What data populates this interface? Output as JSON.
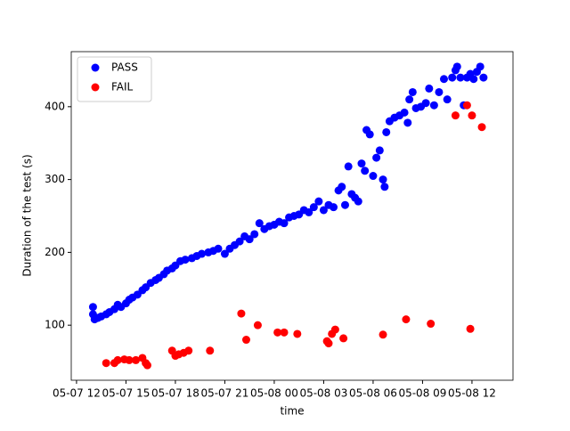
{
  "chart_data": {
    "type": "scatter",
    "xlabel": "time",
    "ylabel": "Duration of the test (s)",
    "xlim": [
      11.68,
      38.49
    ],
    "ylim": [
      24.4,
      475.6
    ],
    "xticks": [
      {
        "value": 12,
        "label": "05-07 12"
      },
      {
        "value": 15,
        "label": "05-07 15"
      },
      {
        "value": 18,
        "label": "05-07 18"
      },
      {
        "value": 21,
        "label": "05-07 21"
      },
      {
        "value": 24,
        "label": "05-08 00"
      },
      {
        "value": 27,
        "label": "05-08 03"
      },
      {
        "value": 30,
        "label": "05-08 06"
      },
      {
        "value": 33,
        "label": "05-08 09"
      },
      {
        "value": 36,
        "label": "05-08 12"
      }
    ],
    "yticks": [
      100,
      200,
      300,
      400
    ],
    "grid": false,
    "legend": "upper left",
    "series": [
      {
        "name": "PASS",
        "color": "#0000ff",
        "x": [
          13.0,
          13.0,
          13.1,
          13.3,
          13.5,
          13.8,
          14.0,
          14.3,
          14.5,
          14.7,
          15.0,
          15.2,
          15.4,
          15.7,
          16.0,
          16.2,
          16.5,
          16.8,
          17.0,
          17.3,
          17.5,
          17.8,
          18.0,
          18.3,
          18.6,
          19.0,
          19.3,
          19.6,
          20.0,
          20.3,
          20.6,
          21.0,
          21.3,
          21.6,
          21.9,
          22.2,
          22.5,
          22.8,
          23.1,
          23.4,
          23.7,
          24.0,
          24.3,
          24.6,
          24.9,
          25.2,
          25.5,
          25.8,
          26.1,
          26.4,
          26.7,
          27.0,
          27.3,
          27.6,
          27.9,
          28.1,
          28.3,
          28.5,
          28.7,
          28.9,
          29.1,
          29.3,
          29.5,
          29.6,
          29.8,
          30.0,
          30.2,
          30.4,
          30.6,
          30.7,
          30.8,
          31.0,
          31.3,
          31.6,
          31.9,
          32.1,
          32.2,
          32.4,
          32.6,
          32.9,
          33.2,
          33.4,
          33.7,
          34.0,
          34.3,
          34.5,
          34.8,
          35.0,
          35.1,
          35.3,
          35.5,
          35.7,
          35.9,
          36.1,
          36.3,
          36.5,
          36.7
        ],
        "values": [
          125,
          115,
          108,
          110,
          112,
          115,
          118,
          122,
          128,
          125,
          130,
          135,
          138,
          142,
          148,
          152,
          158,
          162,
          165,
          170,
          175,
          178,
          182,
          188,
          190,
          192,
          195,
          198,
          200,
          202,
          205,
          198,
          205,
          210,
          215,
          222,
          218,
          225,
          240,
          232,
          236,
          238,
          242,
          240,
          248,
          250,
          252,
          258,
          255,
          262,
          270,
          258,
          265,
          262,
          285,
          290,
          265,
          318,
          280,
          275,
          270,
          322,
          312,
          368,
          362,
          305,
          330,
          340,
          300,
          290,
          365,
          380,
          385,
          388,
          392,
          378,
          410,
          420,
          398,
          400,
          405,
          425,
          402,
          420,
          438,
          410,
          440,
          450,
          455,
          440,
          402,
          440,
          445,
          438,
          448,
          455,
          440
        ]
      },
      {
        "name": "FAIL",
        "color": "#ff0000",
        "x": [
          13.8,
          14.3,
          14.5,
          14.9,
          15.2,
          15.6,
          16.0,
          16.2,
          16.3,
          17.8,
          18.0,
          18.2,
          18.5,
          18.8,
          20.1,
          22.0,
          22.3,
          23.0,
          24.2,
          24.6,
          25.4,
          27.2,
          27.3,
          27.5,
          27.7,
          28.2,
          30.6,
          32.0,
          33.5,
          35.0,
          35.7,
          36.0,
          35.9,
          36.6
        ],
        "values": [
          48,
          48,
          52,
          53,
          52,
          52,
          55,
          48,
          45,
          65,
          58,
          60,
          62,
          65,
          65,
          116,
          80,
          100,
          90,
          90,
          88,
          78,
          75,
          88,
          94,
          82,
          87,
          108,
          102,
          388,
          402,
          388,
          95,
          372
        ]
      }
    ]
  }
}
